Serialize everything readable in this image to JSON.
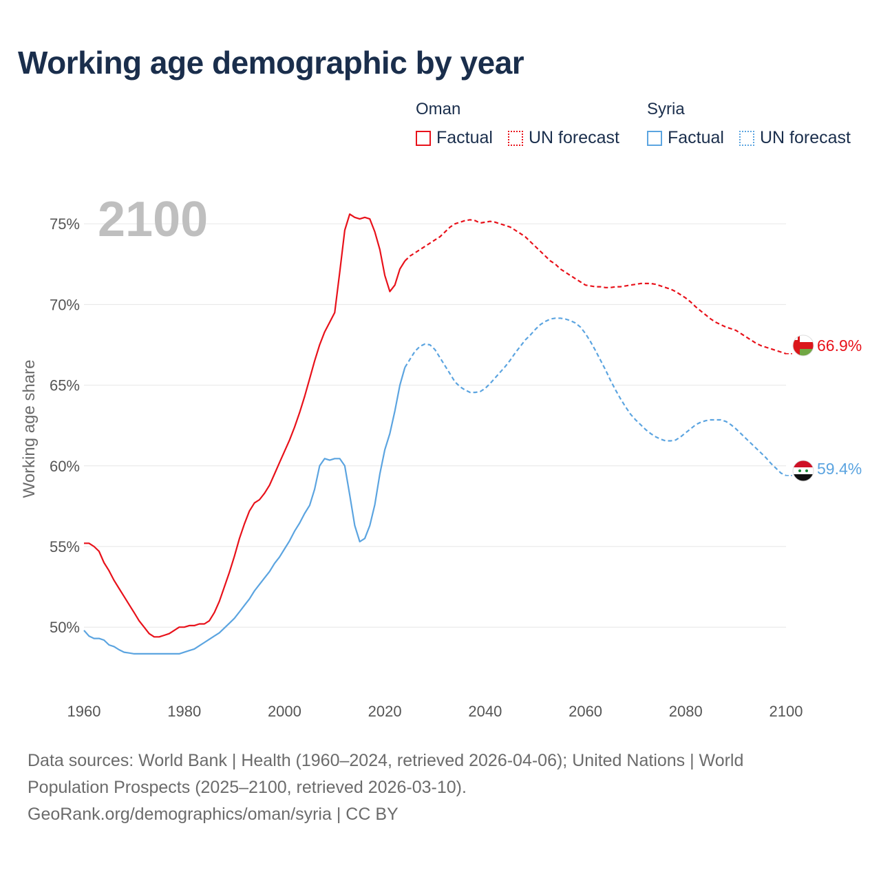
{
  "title": "Working age demographic by year",
  "legend": {
    "groups": [
      {
        "name": "Oman",
        "color": "#e8111a",
        "factual_label": "Factual",
        "forecast_label": "UN forecast"
      },
      {
        "name": "Syria",
        "color": "#5ba4e0",
        "factual_label": "Factual",
        "forecast_label": "UN forecast"
      }
    ]
  },
  "footer": {
    "line1": "Data sources: World Bank | Health (1960–2024, retrieved 2026-04-06); United Nations | World",
    "line2": "Population Prospects (2025–2100, retrieved 2026-03-10).",
    "line3": "GeoRank.org/demographics/oman/syria | CC BY"
  },
  "chart_data": {
    "type": "line",
    "title": "Working age demographic by year",
    "ylabel": "Working age share",
    "xlabel": "",
    "year_label": "2100",
    "xlim": [
      1960,
      2100
    ],
    "ylim": [
      46,
      76.5
    ],
    "x_ticks": [
      1960,
      1980,
      2000,
      2020,
      2040,
      2060,
      2080,
      2100
    ],
    "y_ticks": [
      {
        "value": 50,
        "label": "50%"
      },
      {
        "value": 55,
        "label": "55%"
      },
      {
        "value": 60,
        "label": "60%"
      },
      {
        "value": 65,
        "label": "65%"
      },
      {
        "value": 70,
        "label": "70%"
      },
      {
        "value": 75,
        "label": "75%"
      }
    ],
    "grid": true,
    "series": [
      {
        "name": "Oman",
        "color": "#e8111a",
        "end_label": "66.9%",
        "factual": {
          "x": [
            1960,
            1961,
            1962,
            1963,
            1964,
            1965,
            1966,
            1967,
            1968,
            1969,
            1970,
            1971,
            1972,
            1973,
            1974,
            1975,
            1976,
            1977,
            1978,
            1979,
            1980,
            1981,
            1982,
            1983,
            1984,
            1985,
            1986,
            1987,
            1988,
            1989,
            1990,
            1991,
            1992,
            1993,
            1994,
            1995,
            1996,
            1997,
            1998,
            1999,
            2000,
            2001,
            2002,
            2003,
            2004,
            2005,
            2006,
            2007,
            2008,
            2009,
            2010,
            2011,
            2012,
            2013,
            2014,
            2015,
            2016,
            2017,
            2018,
            2019,
            2020,
            2021,
            2022,
            2023,
            2024
          ],
          "y": [
            55.2,
            55.2,
            55.0,
            54.7,
            54.0,
            53.5,
            52.9,
            52.4,
            51.9,
            51.4,
            50.9,
            50.4,
            50.0,
            49.6,
            49.4,
            49.4,
            49.5,
            49.6,
            49.8,
            50.0,
            50.0,
            50.1,
            50.1,
            50.2,
            50.2,
            50.4,
            50.9,
            51.6,
            52.5,
            53.4,
            54.4,
            55.5,
            56.4,
            57.2,
            57.7,
            57.9,
            58.3,
            58.8,
            59.5,
            60.2,
            60.9,
            61.6,
            62.4,
            63.3,
            64.3,
            65.4,
            66.5,
            67.5,
            68.3,
            68.9,
            69.5,
            72.0,
            74.6,
            75.6,
            75.4,
            75.3,
            75.4,
            75.3,
            74.5,
            73.4,
            71.8,
            70.8,
            71.2,
            72.2,
            72.7
          ]
        },
        "forecast": {
          "x": [
            2024,
            2025,
            2026,
            2027,
            2028,
            2029,
            2030,
            2031,
            2032,
            2033,
            2034,
            2035,
            2036,
            2037,
            2038,
            2039,
            2040,
            2041,
            2042,
            2043,
            2044,
            2045,
            2046,
            2047,
            2048,
            2049,
            2050,
            2051,
            2052,
            2053,
            2054,
            2055,
            2056,
            2057,
            2058,
            2059,
            2060,
            2061,
            2062,
            2063,
            2064,
            2065,
            2066,
            2067,
            2068,
            2069,
            2070,
            2071,
            2072,
            2073,
            2074,
            2075,
            2076,
            2077,
            2078,
            2079,
            2080,
            2081,
            2082,
            2083,
            2084,
            2085,
            2086,
            2087,
            2088,
            2089,
            2090,
            2091,
            2092,
            2093,
            2094,
            2095,
            2096,
            2097,
            2098,
            2099,
            2100
          ],
          "y": [
            72.7,
            73.0,
            73.2,
            73.4,
            73.6,
            73.8,
            74.0,
            74.2,
            74.5,
            74.8,
            75.0,
            75.1,
            75.2,
            75.25,
            75.2,
            75.05,
            75.1,
            75.15,
            75.1,
            75.0,
            74.9,
            74.8,
            74.6,
            74.4,
            74.2,
            73.9,
            73.6,
            73.3,
            73.0,
            72.7,
            72.5,
            72.2,
            72.0,
            71.8,
            71.6,
            71.4,
            71.2,
            71.15,
            71.1,
            71.1,
            71.05,
            71.05,
            71.1,
            71.1,
            71.15,
            71.2,
            71.25,
            71.3,
            71.3,
            71.3,
            71.25,
            71.15,
            71.05,
            70.95,
            70.8,
            70.6,
            70.4,
            70.15,
            69.85,
            69.6,
            69.35,
            69.1,
            68.9,
            68.75,
            68.6,
            68.5,
            68.4,
            68.2,
            68.0,
            67.8,
            67.6,
            67.45,
            67.35,
            67.25,
            67.15,
            67.05,
            66.95
          ]
        }
      },
      {
        "name": "Syria",
        "color": "#5ba4e0",
        "end_label": "59.4%",
        "factual": {
          "x": [
            1960,
            1961,
            1962,
            1963,
            1964,
            1965,
            1966,
            1967,
            1968,
            1969,
            1970,
            1971,
            1972,
            1973,
            1974,
            1975,
            1976,
            1977,
            1978,
            1979,
            1980,
            1981,
            1982,
            1983,
            1984,
            1985,
            1986,
            1987,
            1988,
            1989,
            1990,
            1991,
            1992,
            1993,
            1994,
            1995,
            1996,
            1997,
            1998,
            1999,
            2000,
            2001,
            2002,
            2003,
            2004,
            2005,
            2006,
            2007,
            2008,
            2009,
            2010,
            2011,
            2012,
            2013,
            2014,
            2015,
            2016,
            2017,
            2018,
            2019,
            2020,
            2021,
            2022,
            2023,
            2024
          ],
          "y": [
            49.8,
            49.45,
            49.3,
            49.3,
            49.2,
            48.9,
            48.8,
            48.6,
            48.45,
            48.4,
            48.35,
            48.35,
            48.35,
            48.35,
            48.35,
            48.35,
            48.35,
            48.35,
            48.35,
            48.35,
            48.45,
            48.55,
            48.65,
            48.85,
            49.05,
            49.25,
            49.45,
            49.65,
            49.95,
            50.25,
            50.55,
            50.95,
            51.35,
            51.75,
            52.25,
            52.65,
            53.05,
            53.45,
            53.95,
            54.35,
            54.85,
            55.35,
            55.95,
            56.45,
            57.05,
            57.55,
            58.55,
            60.0,
            60.45,
            60.35,
            60.45,
            60.45,
            60.0,
            58.2,
            56.3,
            55.3,
            55.5,
            56.3,
            57.6,
            59.5,
            61.0,
            62.0,
            63.4,
            65.0,
            66.1
          ]
        },
        "forecast": {
          "x": [
            2024,
            2025,
            2026,
            2027,
            2028,
            2029,
            2030,
            2031,
            2032,
            2033,
            2034,
            2035,
            2036,
            2037,
            2038,
            2039,
            2040,
            2041,
            2042,
            2043,
            2044,
            2045,
            2046,
            2047,
            2048,
            2049,
            2050,
            2051,
            2052,
            2053,
            2054,
            2055,
            2056,
            2057,
            2058,
            2059,
            2060,
            2061,
            2062,
            2063,
            2064,
            2065,
            2066,
            2067,
            2068,
            2069,
            2070,
            2071,
            2072,
            2073,
            2074,
            2075,
            2076,
            2077,
            2078,
            2079,
            2080,
            2081,
            2082,
            2083,
            2084,
            2085,
            2086,
            2087,
            2088,
            2089,
            2090,
            2091,
            2092,
            2093,
            2094,
            2095,
            2096,
            2097,
            2098,
            2099,
            2100
          ],
          "y": [
            66.1,
            66.6,
            67.1,
            67.4,
            67.55,
            67.5,
            67.2,
            66.7,
            66.2,
            65.7,
            65.2,
            64.9,
            64.7,
            64.55,
            64.55,
            64.6,
            64.8,
            65.1,
            65.45,
            65.8,
            66.15,
            66.55,
            67.0,
            67.4,
            67.8,
            68.1,
            68.45,
            68.75,
            68.95,
            69.1,
            69.15,
            69.15,
            69.1,
            69.0,
            68.85,
            68.6,
            68.2,
            67.7,
            67.15,
            66.55,
            65.95,
            65.3,
            64.7,
            64.15,
            63.65,
            63.2,
            62.85,
            62.55,
            62.25,
            62.0,
            61.8,
            61.65,
            61.55,
            61.55,
            61.6,
            61.8,
            62.05,
            62.3,
            62.55,
            62.7,
            62.8,
            62.85,
            62.85,
            62.85,
            62.75,
            62.55,
            62.3,
            62.0,
            61.7,
            61.4,
            61.1,
            60.8,
            60.5,
            60.15,
            59.85,
            59.55,
            59.4
          ]
        }
      }
    ]
  }
}
